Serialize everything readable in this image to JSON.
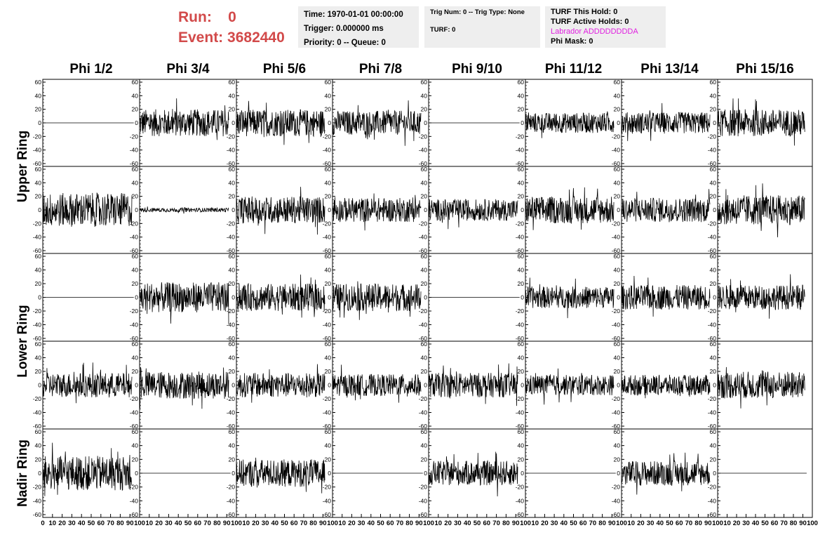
{
  "header": {
    "run_label": "Run:",
    "run_value": "0",
    "event_label": "Event:",
    "event_value": "3682440"
  },
  "info_box_1": {
    "time": "Time: 1970-01-01 00:00:00",
    "trigger": "Trigger: 0.000000 ms",
    "priority": "Priority: 0 -- Queue: 0"
  },
  "info_box_2": {
    "trig": "Trig Num: 0 -- Trig Type: None",
    "turf": "TURF: 0"
  },
  "info_box_3": {
    "this_hold": "TURF This Hold: 0",
    "active_holds": "TURF Active Holds: 0",
    "labrador": "Labrador ADDDDDDDDA",
    "phi_mask": "Phi Mask: 0"
  },
  "chart_data": {
    "type": "line",
    "columns": [
      "Phi 1/2",
      "Phi 3/4",
      "Phi 5/6",
      "Phi 7/8",
      "Phi 9/10",
      "Phi 11/12",
      "Phi 13/14",
      "Phi 15/16"
    ],
    "rows": [
      "Upper Ring",
      "Upper Ring",
      "Lower Ring",
      "Lower Ring",
      "Nadir Ring"
    ],
    "row_titles": [
      "Upper Ring",
      "Lower Ring",
      "Nadir Ring"
    ],
    "xlim": [
      0,
      100
    ],
    "ylim": [
      -60,
      60
    ],
    "y_ticks": [
      -60,
      -40,
      -20,
      0,
      20,
      40,
      60
    ],
    "x_ticks": [
      0,
      10,
      20,
      30,
      40,
      50,
      60,
      70,
      80,
      90,
      100
    ],
    "grid": false,
    "noise_amplitude_by_panel": [
      [
        0,
        20,
        20,
        18,
        0,
        15,
        16,
        20
      ],
      [
        25,
        3,
        20,
        18,
        16,
        20,
        18,
        22
      ],
      [
        0,
        22,
        20,
        20,
        0,
        16,
        18,
        18
      ],
      [
        18,
        20,
        18,
        16,
        18,
        15,
        15,
        20
      ],
      [
        25,
        0,
        20,
        0,
        18,
        0,
        18,
        0
      ]
    ]
  }
}
